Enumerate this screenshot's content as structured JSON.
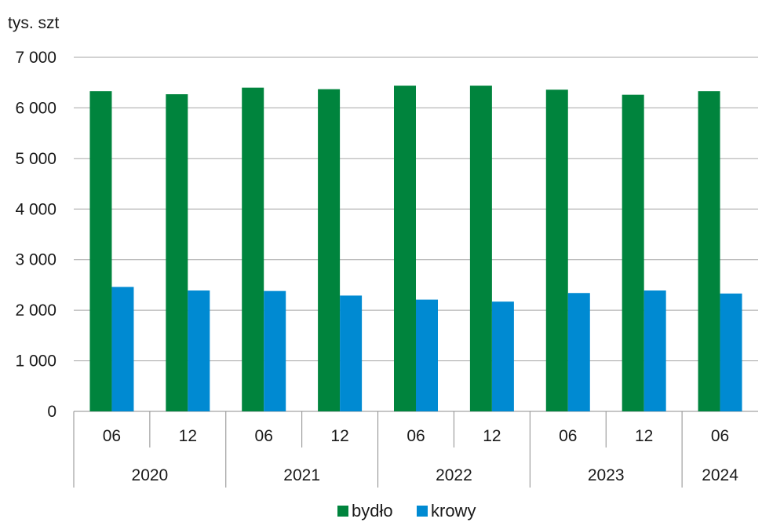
{
  "chart_data": {
    "type": "bar",
    "unit_label": "tys. szt",
    "categories": [
      "06",
      "12",
      "06",
      "12",
      "06",
      "12",
      "06",
      "12",
      "06"
    ],
    "groups": [
      {
        "label": "2020",
        "span": 2
      },
      {
        "label": "2021",
        "span": 2
      },
      {
        "label": "2022",
        "span": 2
      },
      {
        "label": "2023",
        "span": 2
      },
      {
        "label": "2024",
        "span": 1
      }
    ],
    "series": [
      {
        "name": "bydło",
        "color": "#00843d",
        "values": [
          6330,
          6270,
          6400,
          6370,
          6440,
          6440,
          6360,
          6260,
          6330
        ]
      },
      {
        "name": "krowy",
        "color": "#008ad2",
        "values": [
          2460,
          2390,
          2380,
          2290,
          2210,
          2170,
          2340,
          2390,
          2330
        ]
      }
    ],
    "ylim": [
      0,
      7000
    ],
    "yticks": [
      0,
      1000,
      2000,
      3000,
      4000,
      5000,
      6000,
      7000
    ],
    "ytick_labels": [
      "0",
      "1 000",
      "2 000",
      "3 000",
      "4 000",
      "5 000",
      "6 000",
      "7 000"
    ],
    "grid": true,
    "legend_position": "bottom-center"
  }
}
